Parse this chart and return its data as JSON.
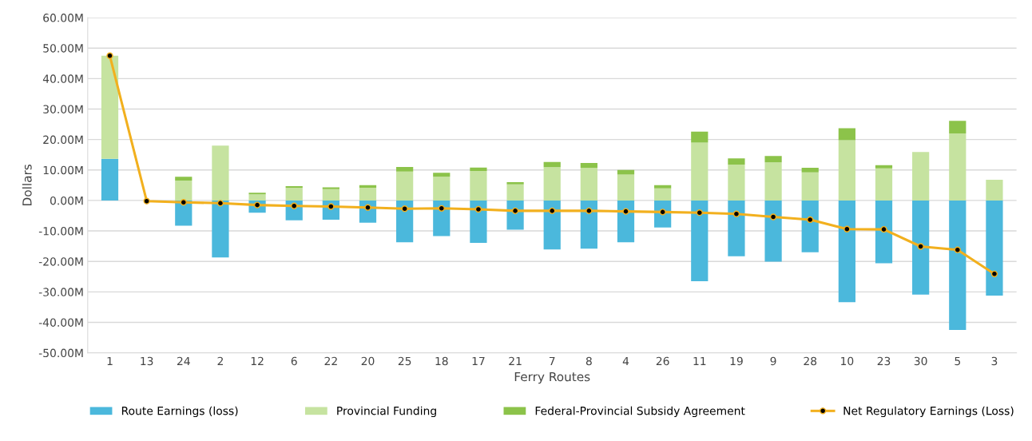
{
  "chart_data": {
    "type": "bar",
    "stacked": true,
    "xlabel": "Ferry Routes",
    "ylabel": "Dollars",
    "categories": [
      "1",
      "13",
      "24",
      "2",
      "12",
      "6",
      "22",
      "20",
      "25",
      "18",
      "17",
      "21",
      "7",
      "8",
      "4",
      "26",
      "11",
      "19",
      "9",
      "28",
      "10",
      "23",
      "30",
      "5",
      "3"
    ],
    "series": [
      {
        "name": "Route Earnings (loss)",
        "color": "#4bb8dc",
        "values": [
          13.7,
          null,
          -8.3,
          -18.7,
          -4,
          -6.5,
          -6.3,
          -7.3,
          -13.7,
          -11.7,
          -13.9,
          -9.6,
          -16.1,
          -15.8,
          -13.7,
          -8.9,
          -26.5,
          -18.3,
          -20.1,
          -17,
          -33.4,
          -20.6,
          -30.9,
          -42.5,
          -31.2
        ]
      },
      {
        "name": "Provincial Funding",
        "color": "#c6e3a0",
        "values": [
          33.8,
          0,
          6.5,
          18,
          2,
          4.2,
          3.7,
          4.2,
          9.5,
          7.8,
          9.7,
          5.3,
          10.9,
          10.7,
          8.5,
          4.0,
          19,
          11.8,
          12.5,
          9.2,
          19.8,
          10.5,
          15.9,
          22,
          6.8
        ]
      },
      {
        "name": "Federal-Provincial Subsidy Agreement",
        "color": "#8cc34a",
        "values": [
          0,
          0,
          1.3,
          0,
          0.5,
          0.5,
          0.6,
          0.8,
          1.5,
          1.3,
          1.1,
          0.7,
          1.7,
          1.6,
          1.5,
          1.0,
          3.6,
          2.0,
          2.1,
          1.5,
          3.9,
          1.1,
          0,
          4.1,
          0
        ]
      },
      {
        "name": "Net Regulatory Earnings (Loss)",
        "type": "line",
        "color": "#f2b01e",
        "marker": "circle",
        "values": [
          47.5,
          -0.2,
          -0.6,
          -0.9,
          -1.5,
          -1.8,
          -2.0,
          -2.3,
          -2.7,
          -2.6,
          -2.9,
          -3.4,
          -3.4,
          -3.4,
          -3.6,
          -3.8,
          -4.0,
          -4.4,
          -5.4,
          -6.3,
          -9.4,
          -9.5,
          -15.1,
          -16.2,
          -24.1
        ]
      }
    ],
    "ylim": [
      -50,
      60
    ],
    "yticks": [
      {
        "value": -50,
        "label": "-50.00M"
      },
      {
        "value": -40,
        "label": "-40.00M"
      },
      {
        "value": -30,
        "label": "-30.00M"
      },
      {
        "value": -20,
        "label": "-20.00M"
      },
      {
        "value": -10,
        "label": "-10.00M"
      },
      {
        "value": 0,
        "label": "0.00M"
      },
      {
        "value": 10,
        "label": "10.00M"
      },
      {
        "value": 20,
        "label": "20.00M"
      },
      {
        "value": 30,
        "label": "30.00M"
      },
      {
        "value": 40,
        "label": "40.00M"
      },
      {
        "value": 50,
        "label": "50.00M"
      },
      {
        "value": 60,
        "label": "60.00M"
      }
    ],
    "grid": "y",
    "legend": "bottom"
  }
}
